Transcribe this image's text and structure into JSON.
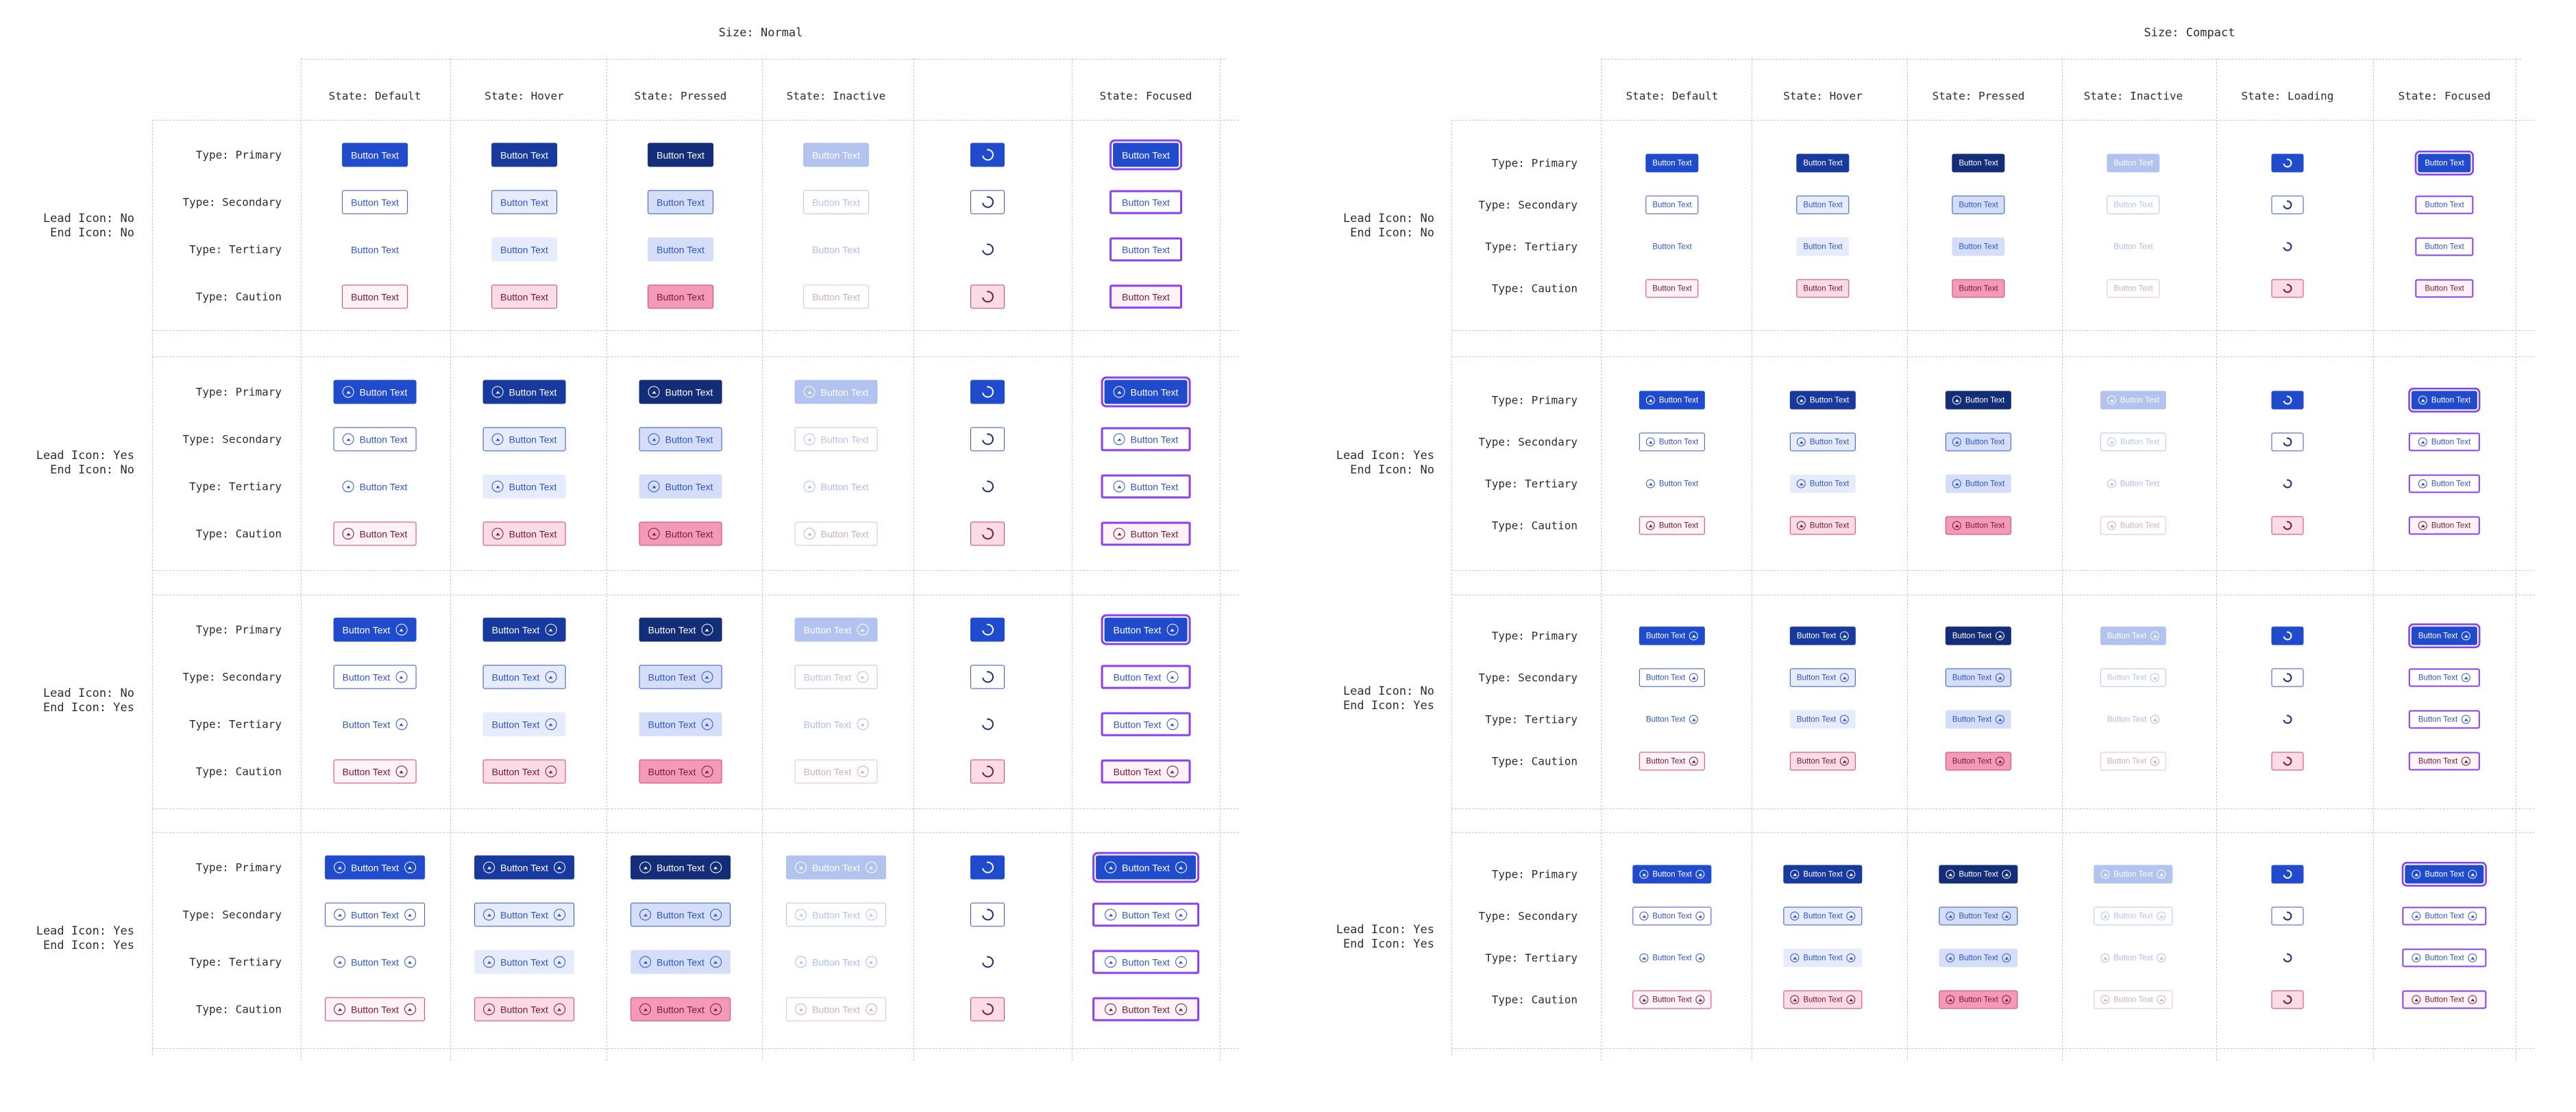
{
  "colors": {
    "primary": "#1f4bcc",
    "primary_hover": "#183a9e",
    "primary_pressed": "#142d78",
    "primary_inactive": "#b3c3ef",
    "outline": "#2f55c8",
    "tint": "#e6ecfb",
    "tint_strong": "#d4def8",
    "caution_text": "#7a1733",
    "caution_border": "#d63d6b",
    "caution_tint": "#fbdbe6",
    "caution_pressed": "#f49ab9",
    "focus_ring": "#8a3ff2",
    "grid": "#b9c6ee"
  },
  "button_label": "Button Text",
  "sections": [
    {
      "title": "Size: Normal",
      "states": [
        "State: Default",
        "State: Hover",
        "State: Pressed",
        "State: Inactive",
        "",
        "State: Focused"
      ]
    },
    {
      "title": "Size: Compact",
      "states": [
        "State: Default",
        "State: Hover",
        "State: Pressed",
        "State: Inactive",
        "State: Loading",
        "State: Focused"
      ]
    }
  ],
  "types": [
    "Type: Primary",
    "Type: Secondary",
    "Type: Tertiary",
    "Type: Caution"
  ],
  "groups": [
    {
      "lead": "Lead Icon: No",
      "end": "End Icon: No"
    },
    {
      "lead": "Lead Icon: Yes",
      "end": "End Icon: No"
    },
    {
      "lead": "Lead Icon: No",
      "end": "End Icon: Yes"
    },
    {
      "lead": "Lead Icon: Yes",
      "end": "End Icon: Yes"
    }
  ],
  "icons": {
    "lead": "arrow-up-circle-icon",
    "end": "arrow-up-circle-icon",
    "loading": "loading-spinner-icon"
  }
}
